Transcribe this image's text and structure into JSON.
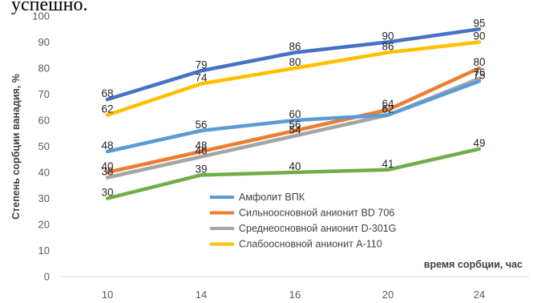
{
  "page_fragment_text": "успешно.",
  "chart_data": {
    "type": "line",
    "title": "",
    "xlabel": "время сорбции, час",
    "ylabel": "Степень сорбции ванадия, %",
    "categories": [
      "10",
      "14",
      "16",
      "20",
      "24"
    ],
    "ylim": [
      0,
      100
    ],
    "yticks": [
      0,
      10,
      20,
      30,
      40,
      50,
      60,
      70,
      80,
      90,
      100
    ],
    "grid": false,
    "legend_position": "bottom-center",
    "series": [
      {
        "name": "Амфолит ВПК",
        "color": "#5b9bd5",
        "values": [
          48,
          56,
          60,
          62,
          75
        ],
        "labels": [
          "48",
          "56",
          "60",
          "62",
          "75"
        ]
      },
      {
        "name": "Сильноосновной анионит BD 706",
        "color": "#ed7d31",
        "values": [
          40,
          48,
          56,
          64,
          80
        ],
        "labels": [
          "40",
          "48",
          "56",
          "64",
          "80"
        ]
      },
      {
        "name": "Среднеосновной анионит D-301G",
        "color": "#a5a5a5",
        "values": [
          38,
          46,
          54,
          62,
          76
        ],
        "labels": [
          "38",
          "46",
          "54",
          "62",
          "76"
        ]
      },
      {
        "name": "Слабоосновной анионит А-110",
        "color": "#ffc000",
        "values": [
          62,
          74,
          80,
          86,
          90
        ],
        "labels": [
          "62",
          "74",
          "80",
          "86",
          "90"
        ]
      },
      {
        "name": "",
        "color": "#4472c4",
        "values": [
          68,
          79,
          86,
          90,
          95
        ],
        "labels": [
          "68",
          "79",
          "86",
          "90",
          "95"
        ]
      },
      {
        "name": "",
        "color": "#70ad47",
        "values": [
          30,
          39,
          40,
          41,
          49
        ],
        "labels": [
          "30",
          "39",
          "40",
          "41",
          "49"
        ]
      }
    ]
  }
}
